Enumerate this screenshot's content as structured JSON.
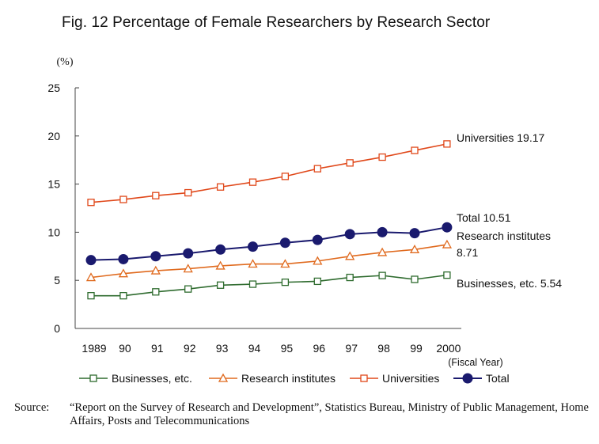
{
  "chart_data": {
    "type": "line",
    "title": "Fig. 12  Percentage of Female Researchers by Research Sector",
    "ylabel": "(%)",
    "xlabel": "(Fiscal Year)",
    "ylim": [
      0,
      25
    ],
    "yticks": [
      0,
      5,
      10,
      15,
      20,
      25
    ],
    "categories": [
      "1989",
      "90",
      "91",
      "92",
      "93",
      "94",
      "95",
      "96",
      "97",
      "98",
      "99",
      "2000"
    ],
    "grid": false,
    "legend_position": "bottom",
    "series": [
      {
        "name": "Businesses, etc.",
        "marker": "square-open",
        "color": "#2e6b2e",
        "values": [
          3.4,
          3.4,
          3.8,
          4.1,
          4.5,
          4.6,
          4.8,
          4.9,
          5.3,
          5.5,
          5.1,
          5.54
        ],
        "end_label": "Businesses, etc. 5.54"
      },
      {
        "name": "Research institutes",
        "marker": "triangle-open",
        "color": "#e06a1e",
        "values": [
          5.3,
          5.7,
          6.0,
          6.2,
          6.5,
          6.7,
          6.7,
          7.0,
          7.5,
          7.9,
          8.2,
          8.71
        ],
        "end_label_lines": [
          "Research institutes",
          "8.71"
        ]
      },
      {
        "name": "Universities",
        "marker": "square-open",
        "color": "#e0481a",
        "values": [
          13.1,
          13.4,
          13.8,
          14.1,
          14.7,
          15.2,
          15.8,
          16.6,
          17.2,
          17.8,
          18.5,
          19.17
        ],
        "end_label": "Universities 19.17"
      },
      {
        "name": "Total",
        "marker": "circle-filled",
        "color": "#1a1a6e",
        "values": [
          7.1,
          7.2,
          7.5,
          7.8,
          8.2,
          8.5,
          8.9,
          9.2,
          9.8,
          10.0,
          9.9,
          10.51
        ],
        "end_label": "Total  10.51"
      }
    ]
  },
  "source": {
    "label": "Source:",
    "text": "“Report on the Survey of Research and Development”, Statistics Bureau, Ministry of Public Management, Home Affairs, Posts and Telecommunications"
  }
}
